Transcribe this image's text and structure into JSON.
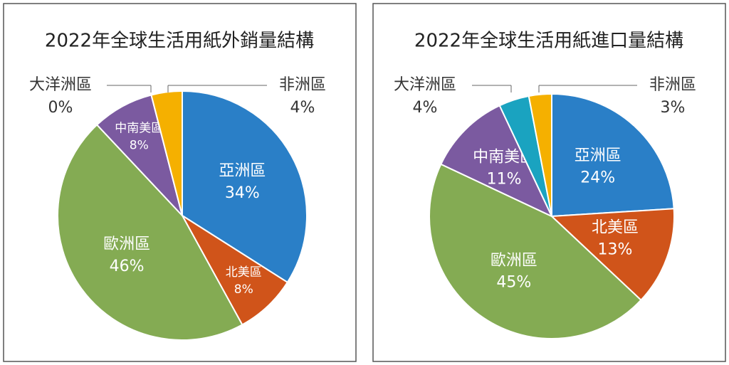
{
  "chart_data": [
    {
      "type": "pie",
      "title": "2022年全球生活用紙外銷量結構",
      "categories": [
        "亞洲區",
        "北美區",
        "歐洲區",
        "中南美區",
        "大洋洲區",
        "非洲區"
      ],
      "values": [
        34,
        8,
        46,
        8,
        0,
        4
      ],
      "value_labels": [
        "34%",
        "8%",
        "46%",
        "8%",
        "0%",
        "4%"
      ],
      "colors": [
        "#2a7fc7",
        "#d0541a",
        "#84ab53",
        "#7b5aa0",
        "#1aa3c0",
        "#f5b000"
      ]
    },
    {
      "type": "pie",
      "title": "2022年全球生活用紙進口量結構",
      "categories": [
        "亞洲區",
        "北美區",
        "歐洲區",
        "中南美區",
        "大洋洲區",
        "非洲區"
      ],
      "values": [
        24,
        13,
        45,
        11,
        4,
        3
      ],
      "value_labels": [
        "24%",
        "13%",
        "45%",
        "11%",
        "4%",
        "3%"
      ],
      "colors": [
        "#2a7fc7",
        "#d0541a",
        "#84ab53",
        "#7b5aa0",
        "#1aa3c0",
        "#f5b000"
      ]
    }
  ]
}
